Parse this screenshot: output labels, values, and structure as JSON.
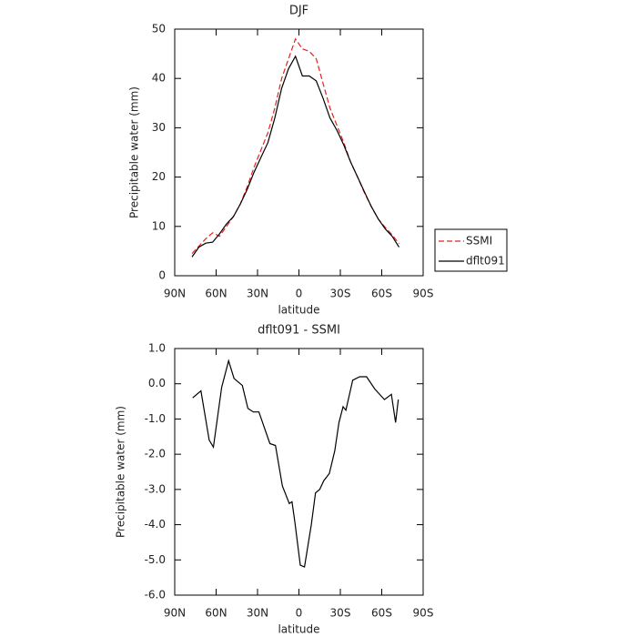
{
  "chart_data": [
    {
      "type": "line",
      "title": "DJF",
      "x_label": "latitude",
      "y_label": "Precipitable water (mm)",
      "x": [
        77.5,
        72.5,
        67.5,
        62.5,
        57.5,
        52.5,
        47.5,
        42.5,
        37.5,
        32.5,
        27.5,
        22.5,
        17.5,
        12.5,
        7.5,
        2.5,
        -2.5,
        -7.5,
        -12.5,
        -17.5,
        -22.5,
        -27.5,
        -32.5,
        -37.5,
        -42.5,
        -47.5,
        -52.5,
        -57.5,
        -62.5,
        -67.5,
        -72.5
      ],
      "series": [
        {
          "name": "SSMI",
          "color": "#e8201c",
          "style": "dashed",
          "values": [
            4.5,
            6,
            7.5,
            8.7,
            8,
            10,
            12,
            14.5,
            18,
            22,
            25.5,
            29,
            34,
            40,
            44,
            48,
            46,
            45.5,
            44,
            39,
            34,
            30.5,
            27,
            23,
            20,
            16.8,
            14,
            11.5,
            9.8,
            8.3,
            6.5
          ]
        },
        {
          "name": "dflt091",
          "color": "#000000",
          "style": "solid",
          "values": [
            3.8,
            5.8,
            6.6,
            6.8,
            8.5,
            10.5,
            12,
            14.5,
            17.5,
            21,
            24,
            27,
            32,
            38,
            42,
            44.5,
            40.5,
            40.5,
            39.5,
            36,
            32,
            29.5,
            26.5,
            23,
            20,
            17,
            14,
            11.5,
            9.5,
            8,
            5.8
          ]
        }
      ],
      "xlim": [
        90,
        -90
      ],
      "xticks": [
        {
          "value": 90,
          "label": "90N"
        },
        {
          "value": 60,
          "label": "60N"
        },
        {
          "value": 30,
          "label": "30N"
        },
        0,
        {
          "value": -30,
          "label": "30S"
        },
        {
          "value": -60,
          "label": "60S"
        },
        {
          "value": -90,
          "label": "90S"
        }
      ],
      "ylim": [
        0,
        50
      ],
      "yticks": [
        0,
        10,
        20,
        30,
        40,
        50
      ],
      "legend": "right"
    },
    {
      "type": "line",
      "title": "dflt091 - SSMI",
      "x_label": "latitude",
      "y_label": "Precipitable water (mm)",
      "x": [
        77,
        71,
        65,
        62,
        56,
        51,
        47,
        41,
        37,
        33,
        29,
        21,
        17,
        12,
        7,
        5,
        3,
        -1,
        -4,
        -9,
        -12,
        -15,
        -18,
        -22,
        -26,
        -29,
        -32,
        -34,
        -39,
        -44,
        -49,
        -55,
        -62,
        -67,
        -70,
        -72
      ],
      "series": [
        {
          "name": "dflt091 - SSMI",
          "color": "#000000",
          "style": "solid",
          "values": [
            -0.4,
            -0.2,
            -1.6,
            -1.8,
            -0.1,
            0.65,
            0.15,
            -0.05,
            -0.7,
            -0.8,
            -0.8,
            -1.7,
            -1.75,
            -2.9,
            -3.4,
            -3.35,
            -3.9,
            -5.15,
            -5.2,
            -4.0,
            -3.1,
            -3.0,
            -2.75,
            -2.55,
            -1.9,
            -1.1,
            -0.65,
            -0.75,
            0.1,
            0.2,
            0.2,
            -0.15,
            -0.45,
            -0.3,
            -1.1,
            -0.45
          ]
        }
      ],
      "xlim": [
        90,
        -90
      ],
      "xticks": [
        {
          "value": 90,
          "label": "90N"
        },
        {
          "value": 60,
          "label": "60N"
        },
        {
          "value": 30,
          "label": "30N"
        },
        0,
        {
          "value": -30,
          "label": "30S"
        },
        {
          "value": -60,
          "label": "60S"
        },
        {
          "value": -90,
          "label": "90S"
        }
      ],
      "ylim": [
        -6,
        1
      ],
      "yticks": [
        {
          "value": 1,
          "label": "1.0"
        },
        {
          "value": 0,
          "label": "0.0"
        },
        {
          "value": -1,
          "label": "-1.0"
        },
        {
          "value": -2,
          "label": "-2.0"
        },
        {
          "value": -3,
          "label": "-3.0"
        },
        {
          "value": -4,
          "label": "-4.0"
        },
        {
          "value": -5,
          "label": "-5.0"
        },
        {
          "value": -6,
          "label": "-6.0"
        }
      ]
    }
  ]
}
